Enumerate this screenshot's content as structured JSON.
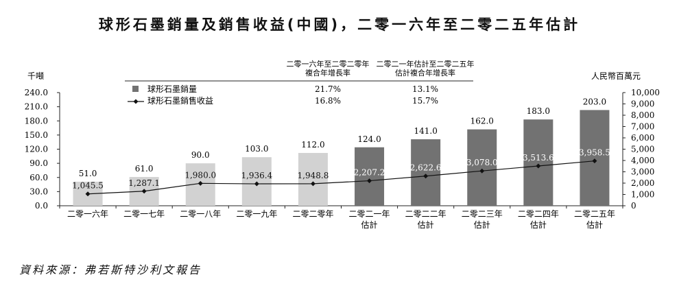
{
  "title": "球形石墨銷量及銷售收益(中國)，二零一六年至二零二五年估計",
  "source": "資料來源：弗若斯特沙利文報告",
  "chart_data": {
    "type": "bar",
    "categories": [
      [
        "二零一六年"
      ],
      [
        "二零一七年"
      ],
      [
        "二零一八年"
      ],
      [
        "二零一九年"
      ],
      [
        "二零二零年"
      ],
      [
        "二零二一年",
        "估計"
      ],
      [
        "二零二二年",
        "估計"
      ],
      [
        "二零二三年",
        "估計"
      ],
      [
        "二零二四年",
        "估計"
      ],
      [
        "二零二五年",
        "估計"
      ]
    ],
    "y_left": {
      "label": "千噸",
      "min": 0,
      "max": 240,
      "step": 30,
      "ticks": [
        "0.0",
        "30.0",
        "60.0",
        "90.0",
        "120.0",
        "150.0",
        "180.0",
        "210.0",
        "240.0"
      ]
    },
    "y_right": {
      "label": "人民幣百萬元",
      "min": 0,
      "max": 10000,
      "step": 1000,
      "ticks": [
        "0",
        "1,000",
        "2,000",
        "3,000",
        "4,000",
        "5,000",
        "6,000",
        "7,000",
        "8,000",
        "9,000",
        "10,000"
      ]
    },
    "series": [
      {
        "name": "球形石墨銷量",
        "type": "bar",
        "axis": "left",
        "values": [
          51.0,
          61.0,
          90.0,
          103.0,
          112.0,
          124.0,
          141.0,
          162.0,
          183.0,
          203.0
        ],
        "labels": [
          "51.0",
          "61.0",
          "90.0",
          "103.0",
          "112.0",
          "124.0",
          "141.0",
          "162.0",
          "183.0",
          "203.0"
        ],
        "colors": [
          "#d2d2d2",
          "#d2d2d2",
          "#d2d2d2",
          "#d2d2d2",
          "#d2d2d2",
          "#727272",
          "#727272",
          "#727272",
          "#727272",
          "#727272"
        ]
      },
      {
        "name": "球形石墨銷售收益",
        "type": "line",
        "axis": "right",
        "values": [
          1045.5,
          1287.1,
          1980.0,
          1936.4,
          1948.8,
          2207.2,
          2622.6,
          3078.0,
          3513.6,
          3958.5
        ],
        "labels": [
          "1,045.5",
          "1,287.1",
          "1,980.0",
          "1,936.4",
          "1,948.8",
          "2,207.2",
          "2,622.6",
          "3,078.0",
          "3,513.6",
          "3,958.5"
        ],
        "color": "#111111"
      }
    ],
    "legend_table": {
      "col_headers": [
        [
          "二零一六年至二零二零年",
          "複合年增長率"
        ],
        [
          "二零二一年估計至二零二五年",
          "估計複合年增長率"
        ]
      ],
      "rows": [
        {
          "name": "球形石墨銷量",
          "cagr_hist": "21.7%",
          "cagr_fcst": "13.1%"
        },
        {
          "name": "球形石墨銷售收益",
          "cagr_hist": "16.8%",
          "cagr_fcst": "15.7%"
        }
      ]
    }
  }
}
